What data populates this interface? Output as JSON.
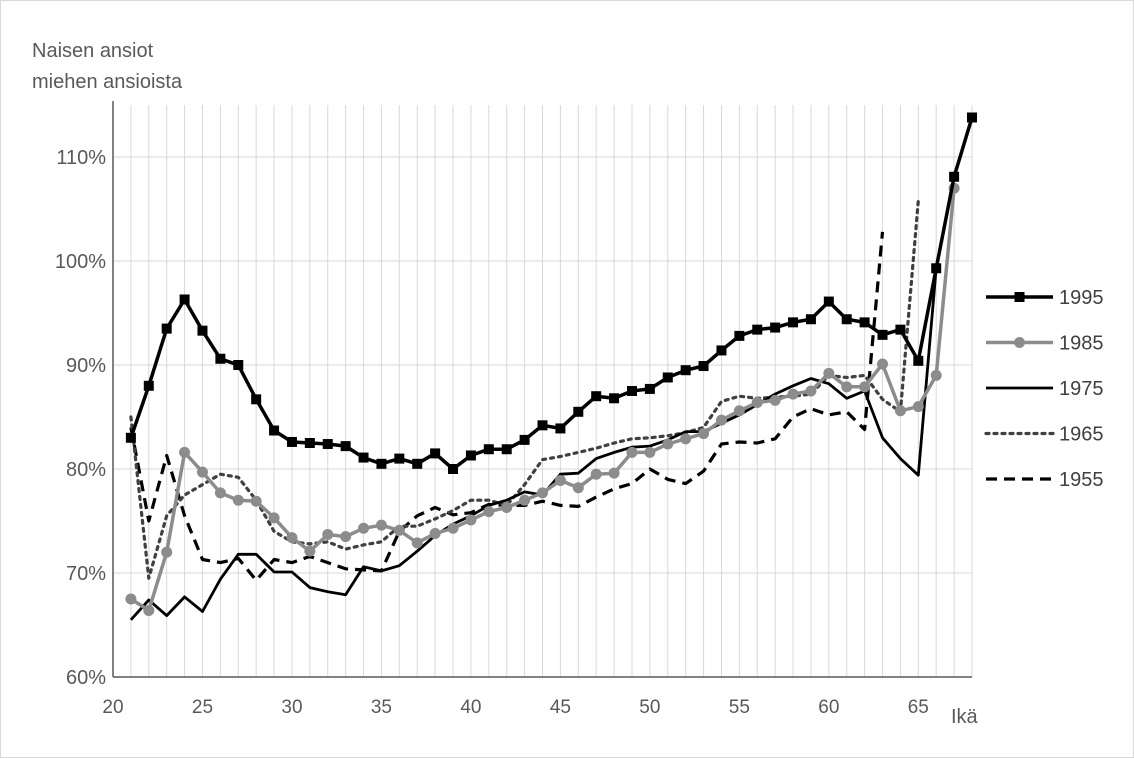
{
  "chart_data": {
    "type": "line",
    "ylabel_lines": [
      "Naisen ansiot",
      "miehen ansioista"
    ],
    "xlabel": "Ikä",
    "xlim": [
      20,
      68
    ],
    "ylim": [
      60,
      115
    ],
    "x_ticks": [
      20,
      25,
      30,
      35,
      40,
      45,
      50,
      55,
      60,
      65
    ],
    "y_ticks": [
      60,
      70,
      80,
      90,
      100,
      110
    ],
    "y_tick_labels": [
      "60%",
      "70%",
      "80%",
      "90%",
      "100%",
      "110%"
    ],
    "grid": "vertical lines at every year, horizontal lines at every 10%",
    "legend_position": "right",
    "series": [
      {
        "name": "1995",
        "color": "#000000",
        "style": "solid-square-markers",
        "x": [
          21,
          22,
          23,
          24,
          25,
          26,
          27,
          28,
          29,
          30,
          31,
          32,
          33,
          34,
          35,
          36,
          37,
          38,
          39,
          40,
          41,
          42,
          43,
          44,
          45,
          46,
          47,
          48,
          49,
          50,
          51,
          52,
          53,
          54,
          55,
          56,
          57,
          58,
          59,
          60,
          61,
          62,
          63,
          64,
          65,
          66,
          67,
          68
        ],
        "values": [
          83.0,
          88.0,
          93.5,
          96.3,
          93.3,
          90.6,
          90.0,
          86.7,
          83.7,
          82.6,
          82.5,
          82.4,
          82.2,
          81.1,
          80.5,
          81.0,
          80.5,
          81.5,
          80.0,
          81.3,
          81.9,
          81.9,
          82.8,
          84.2,
          83.9,
          85.5,
          87.0,
          86.8,
          87.5,
          87.7,
          88.8,
          89.5,
          89.9,
          91.4,
          92.8,
          93.4,
          93.6,
          94.1,
          94.4,
          96.1,
          94.4,
          94.1,
          92.9,
          93.4,
          90.4,
          99.3,
          108.1,
          113.8
        ]
      },
      {
        "name": "1985",
        "color": "#8c8c8c",
        "style": "solid-circle-markers",
        "x": [
          21,
          22,
          23,
          24,
          25,
          26,
          27,
          28,
          29,
          30,
          31,
          32,
          33,
          34,
          35,
          36,
          37,
          38,
          39,
          40,
          41,
          42,
          43,
          44,
          45,
          46,
          47,
          48,
          49,
          50,
          51,
          52,
          53,
          54,
          55,
          56,
          57,
          58,
          59,
          60,
          61,
          62,
          63,
          64,
          65,
          66,
          67
        ],
        "values": [
          67.5,
          66.4,
          72.0,
          81.6,
          79.7,
          77.7,
          77.0,
          76.9,
          75.3,
          73.4,
          72.1,
          73.7,
          73.5,
          74.3,
          74.6,
          74.1,
          72.9,
          73.8,
          74.3,
          75.1,
          75.9,
          76.3,
          77.0,
          77.7,
          78.9,
          78.2,
          79.5,
          79.6,
          81.6,
          81.6,
          82.4,
          82.9,
          83.4,
          84.7,
          85.6,
          86.4,
          86.6,
          87.2,
          87.5,
          89.2,
          87.9,
          87.9,
          90.1,
          85.6,
          86.0,
          89.0,
          107.0
        ]
      },
      {
        "name": "1975",
        "color": "#000000",
        "style": "solid",
        "x": [
          21,
          22,
          23,
          24,
          25,
          26,
          27,
          28,
          29,
          30,
          31,
          32,
          33,
          34,
          35,
          36,
          37,
          38,
          39,
          40,
          41,
          42,
          43,
          44,
          45,
          46,
          47,
          48,
          49,
          50,
          51,
          52,
          53,
          54,
          55,
          56,
          57,
          58,
          59,
          60,
          61,
          62,
          63,
          64,
          65,
          66
        ],
        "values": [
          65.5,
          67.4,
          65.9,
          67.7,
          66.3,
          69.4,
          71.8,
          71.8,
          70.1,
          70.1,
          68.6,
          68.2,
          67.9,
          70.6,
          70.2,
          70.7,
          72.1,
          73.6,
          74.7,
          75.5,
          76.5,
          77.0,
          77.8,
          77.5,
          79.5,
          79.6,
          81.0,
          81.6,
          82.1,
          82.2,
          82.8,
          83.6,
          83.6,
          84.4,
          85.2,
          86.2,
          87.2,
          88.0,
          88.7,
          88.2,
          86.8,
          87.5,
          83.0,
          81.0,
          79.4,
          99.3
        ]
      },
      {
        "name": "1965",
        "color": "#404040",
        "style": "dotted",
        "x": [
          21,
          22,
          23,
          24,
          25,
          26,
          27,
          28,
          29,
          30,
          31,
          32,
          33,
          34,
          35,
          36,
          37,
          38,
          39,
          40,
          41,
          42,
          43,
          44,
          45,
          46,
          47,
          48,
          49,
          50,
          51,
          52,
          53,
          54,
          55,
          56,
          57,
          58,
          59,
          60,
          61,
          62,
          63,
          64,
          65
        ],
        "values": [
          85.0,
          69.5,
          75.5,
          77.5,
          78.5,
          79.5,
          79.2,
          77.0,
          74.0,
          73.0,
          72.8,
          73.0,
          72.3,
          72.7,
          73.0,
          74.5,
          74.5,
          75.2,
          76.0,
          77.0,
          77.0,
          76.5,
          78.5,
          80.9,
          81.2,
          81.6,
          82.0,
          82.5,
          82.9,
          83.0,
          83.2,
          83.5,
          84.0,
          86.5,
          87.0,
          86.8,
          86.9,
          87.0,
          87.2,
          89.0,
          88.8,
          89.0,
          86.7,
          85.5,
          105.8
        ]
      },
      {
        "name": "1955",
        "color": "#000000",
        "style": "dashed",
        "x": [
          21,
          22,
          23,
          24,
          25,
          26,
          27,
          28,
          29,
          30,
          31,
          32,
          33,
          34,
          35,
          36,
          37,
          38,
          39,
          40,
          41,
          42,
          43,
          44,
          45,
          46,
          47,
          48,
          49,
          50,
          51,
          52,
          53,
          54,
          55,
          56,
          57,
          58,
          59,
          60,
          61,
          62,
          63
        ],
        "values": [
          84.0,
          75.0,
          81.3,
          75.5,
          71.3,
          71.0,
          71.4,
          69.3,
          71.3,
          71.0,
          71.6,
          71.0,
          70.4,
          70.3,
          70.2,
          74.0,
          75.5,
          76.3,
          75.6,
          75.8,
          76.6,
          76.5,
          76.5,
          76.9,
          76.5,
          76.4,
          77.3,
          78.1,
          78.6,
          80.0,
          79.0,
          78.6,
          79.8,
          82.4,
          82.6,
          82.5,
          82.9,
          85.0,
          85.8,
          85.2,
          85.5,
          83.8,
          102.8
        ]
      }
    ]
  }
}
